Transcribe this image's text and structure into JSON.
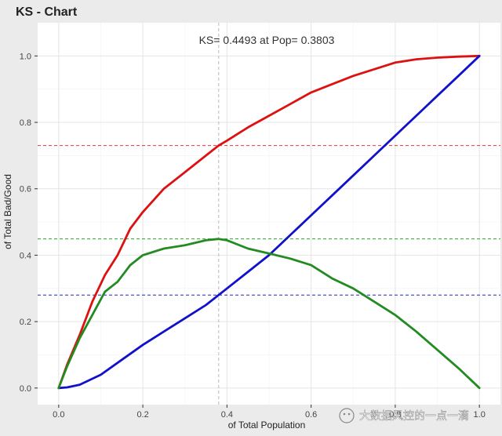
{
  "chart_data": {
    "type": "line",
    "title": "KS - Chart",
    "annotation": "KS= 0.4493 at Pop= 0.3803",
    "xlabel": "of Total Population",
    "ylabel": "of Total Bad/Good",
    "xlim": [
      -0.05,
      1.05
    ],
    "ylim": [
      -0.05,
      1.1
    ],
    "x_ticks": [
      0.0,
      0.2,
      0.4,
      0.6,
      0.8,
      1.0
    ],
    "x_tick_labels": [
      "0.0",
      "0.2",
      "0.4",
      "0.6",
      "0.8",
      "1.0"
    ],
    "y_ticks": [
      0.0,
      0.2,
      0.4,
      0.6,
      0.8,
      1.0
    ],
    "y_tick_labels": [
      "0.0",
      "0.2",
      "0.4",
      "0.6",
      "0.8",
      "1.0"
    ],
    "grid": true,
    "series": [
      {
        "color": "#dd1111",
        "points": [
          [
            0,
            0
          ],
          [
            0.02,
            0.07
          ],
          [
            0.05,
            0.16
          ],
          [
            0.08,
            0.26
          ],
          [
            0.11,
            0.34
          ],
          [
            0.14,
            0.4
          ],
          [
            0.17,
            0.48
          ],
          [
            0.2,
            0.53
          ],
          [
            0.25,
            0.6
          ],
          [
            0.3,
            0.65
          ],
          [
            0.35,
            0.7
          ],
          [
            0.38,
            0.73
          ],
          [
            0.4,
            0.745
          ],
          [
            0.45,
            0.785
          ],
          [
            0.5,
            0.82
          ],
          [
            0.55,
            0.855
          ],
          [
            0.6,
            0.89
          ],
          [
            0.65,
            0.915
          ],
          [
            0.7,
            0.94
          ],
          [
            0.75,
            0.96
          ],
          [
            0.8,
            0.98
          ],
          [
            0.85,
            0.99
          ],
          [
            0.9,
            0.995
          ],
          [
            0.95,
            0.998
          ],
          [
            1.0,
            1.0
          ]
        ]
      },
      {
        "color": "#1111cc",
        "points": [
          [
            0,
            0
          ],
          [
            0.02,
            0.002
          ],
          [
            0.05,
            0.01
          ],
          [
            0.1,
            0.04
          ],
          [
            0.15,
            0.085
          ],
          [
            0.2,
            0.13
          ],
          [
            0.25,
            0.17
          ],
          [
            0.3,
            0.21
          ],
          [
            0.35,
            0.25
          ],
          [
            0.38,
            0.28
          ],
          [
            0.4,
            0.3
          ],
          [
            0.45,
            0.35
          ],
          [
            0.5,
            0.4
          ],
          [
            0.55,
            0.46
          ],
          [
            0.6,
            0.52
          ],
          [
            0.65,
            0.58
          ],
          [
            0.7,
            0.64
          ],
          [
            0.75,
            0.7
          ],
          [
            0.8,
            0.76
          ],
          [
            0.85,
            0.82
          ],
          [
            0.9,
            0.88
          ],
          [
            0.95,
            0.94
          ],
          [
            1.0,
            1.0
          ]
        ]
      },
      {
        "color": "#228b22",
        "points": [
          [
            0,
            0
          ],
          [
            0.02,
            0.065
          ],
          [
            0.05,
            0.15
          ],
          [
            0.08,
            0.22
          ],
          [
            0.11,
            0.29
          ],
          [
            0.14,
            0.32
          ],
          [
            0.17,
            0.37
          ],
          [
            0.2,
            0.4
          ],
          [
            0.25,
            0.42
          ],
          [
            0.3,
            0.43
          ],
          [
            0.35,
            0.445
          ],
          [
            0.38,
            0.449
          ],
          [
            0.4,
            0.445
          ],
          [
            0.45,
            0.42
          ],
          [
            0.5,
            0.405
          ],
          [
            0.55,
            0.39
          ],
          [
            0.6,
            0.37
          ],
          [
            0.65,
            0.33
          ],
          [
            0.7,
            0.3
          ],
          [
            0.75,
            0.26
          ],
          [
            0.8,
            0.22
          ],
          [
            0.85,
            0.17
          ],
          [
            0.9,
            0.115
          ],
          [
            0.95,
            0.06
          ],
          [
            1.0,
            0.0
          ]
        ]
      }
    ],
    "reference_lines": [
      {
        "orientation": "vertical",
        "value": 0.3803,
        "color": "#bbbbbb",
        "style": "dashed"
      },
      {
        "orientation": "horizontal",
        "value": 0.73,
        "color": "#ee3333",
        "style": "dashed"
      },
      {
        "orientation": "horizontal",
        "value": 0.449,
        "color": "#22aa22",
        "style": "dashed"
      },
      {
        "orientation": "horizontal",
        "value": 0.28,
        "color": "#2222cc",
        "style": "dashed"
      }
    ]
  },
  "watermark": {
    "text": "大数据风控的一点一滴"
  }
}
